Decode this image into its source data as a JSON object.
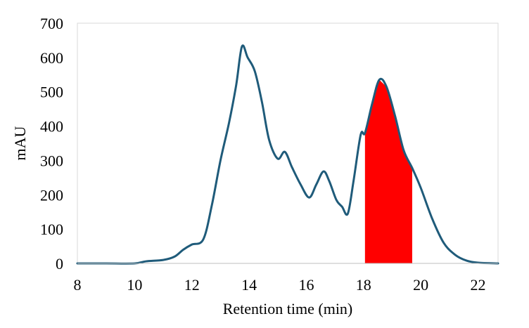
{
  "chart_data": {
    "type": "line",
    "title": "",
    "xlabel": "Retention time (min)",
    "ylabel": "mAU",
    "xlim": [
      8,
      22.7
    ],
    "ylim": [
      0,
      700
    ],
    "xticks": [
      8,
      10,
      12,
      14,
      16,
      18,
      20,
      22
    ],
    "yticks": [
      0,
      100,
      200,
      300,
      400,
      500,
      600,
      700
    ],
    "grid": false,
    "legend": "none",
    "series": [
      {
        "name": "Chromatogram",
        "color": "#1f5b7a",
        "x": [
          8,
          9,
          10,
          10.4,
          11,
          11.4,
          11.7,
          12,
          12.4,
          12.7,
          13,
          13.3,
          13.55,
          13.75,
          13.95,
          14.2,
          14.45,
          14.7,
          15.0,
          15.25,
          15.5,
          15.8,
          16.1,
          16.35,
          16.6,
          16.8,
          17.05,
          17.25,
          17.45,
          17.65,
          17.9,
          18.05,
          18.3,
          18.55,
          18.8,
          19.1,
          19.4,
          19.7,
          20.0,
          20.4,
          20.8,
          21.2,
          21.6,
          22.0,
          22.7
        ],
        "y": [
          0,
          0,
          0,
          6,
          10,
          20,
          40,
          55,
          70,
          170,
          300,
          410,
          520,
          632,
          600,
          560,
          470,
          360,
          305,
          325,
          280,
          230,
          192,
          230,
          268,
          240,
          185,
          165,
          145,
          240,
          375,
          380,
          465,
          535,
          515,
          430,
          330,
          278,
          220,
          130,
          60,
          25,
          8,
          2,
          0
        ]
      }
    ],
    "highlight": {
      "label": "",
      "color": "#ff0000",
      "x_start": 18.05,
      "x_end": 19.7
    }
  }
}
